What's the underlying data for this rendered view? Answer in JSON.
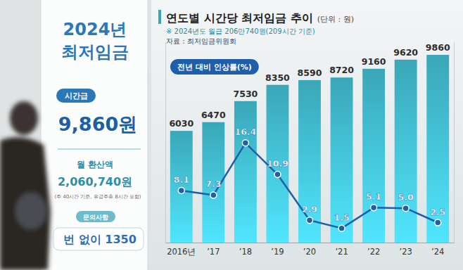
{
  "chart_data": {
    "type": "bar",
    "title": "연도별 시간당 최저임금 추이",
    "subtitle": "(단위 : 원)",
    "annotations": [
      "※ 2024년도 월급 206만740원(209시간 기준)",
      "자료 : 최저임금위원회"
    ],
    "categories": [
      "2016년",
      "’17",
      "’18",
      "’19",
      "’20",
      "’21",
      "’22",
      "’23",
      "’24"
    ],
    "series": [
      {
        "type": "bar",
        "color": "#3aa7b8",
        "values": [
          6030,
          6470,
          7530,
          8350,
          8590,
          8720,
          9160,
          9620,
          9860
        ]
      },
      {
        "name": "전년 대비 인상률(%)",
        "type": "line",
        "axis": "y2",
        "color": "#1f5ea8",
        "marker": "circle",
        "values": [
          8.1,
          7.3,
          16.4,
          10.9,
          2.9,
          1.5,
          5.1,
          5.0,
          2.5
        ],
        "value_labels": [
          "8.1",
          "7.3",
          "16.4",
          "10.9",
          "2.9",
          "1.5",
          "5.1",
          "5.0",
          "2.5"
        ]
      }
    ],
    "ylim": [
      400,
      10500
    ],
    "yticks": [],
    "y2lim": [
      -1,
      34
    ],
    "y2ticks": [],
    "data_labels": true,
    "tick_labels": "x",
    "grid": false,
    "legend": "top-left"
  },
  "poster": {
    "title_lines": [
      "2024년",
      "최저임금"
    ],
    "hourly_label": "시간급",
    "hourly_amount": "9,860원",
    "monthly_label": "월 환산액",
    "monthly_amount": "2,060,740원",
    "monthly_note": "(주 40시간 기준, 유급주휴 8시간 포함)",
    "contact_label": "문의사항",
    "contact": "번 없이 1350"
  }
}
